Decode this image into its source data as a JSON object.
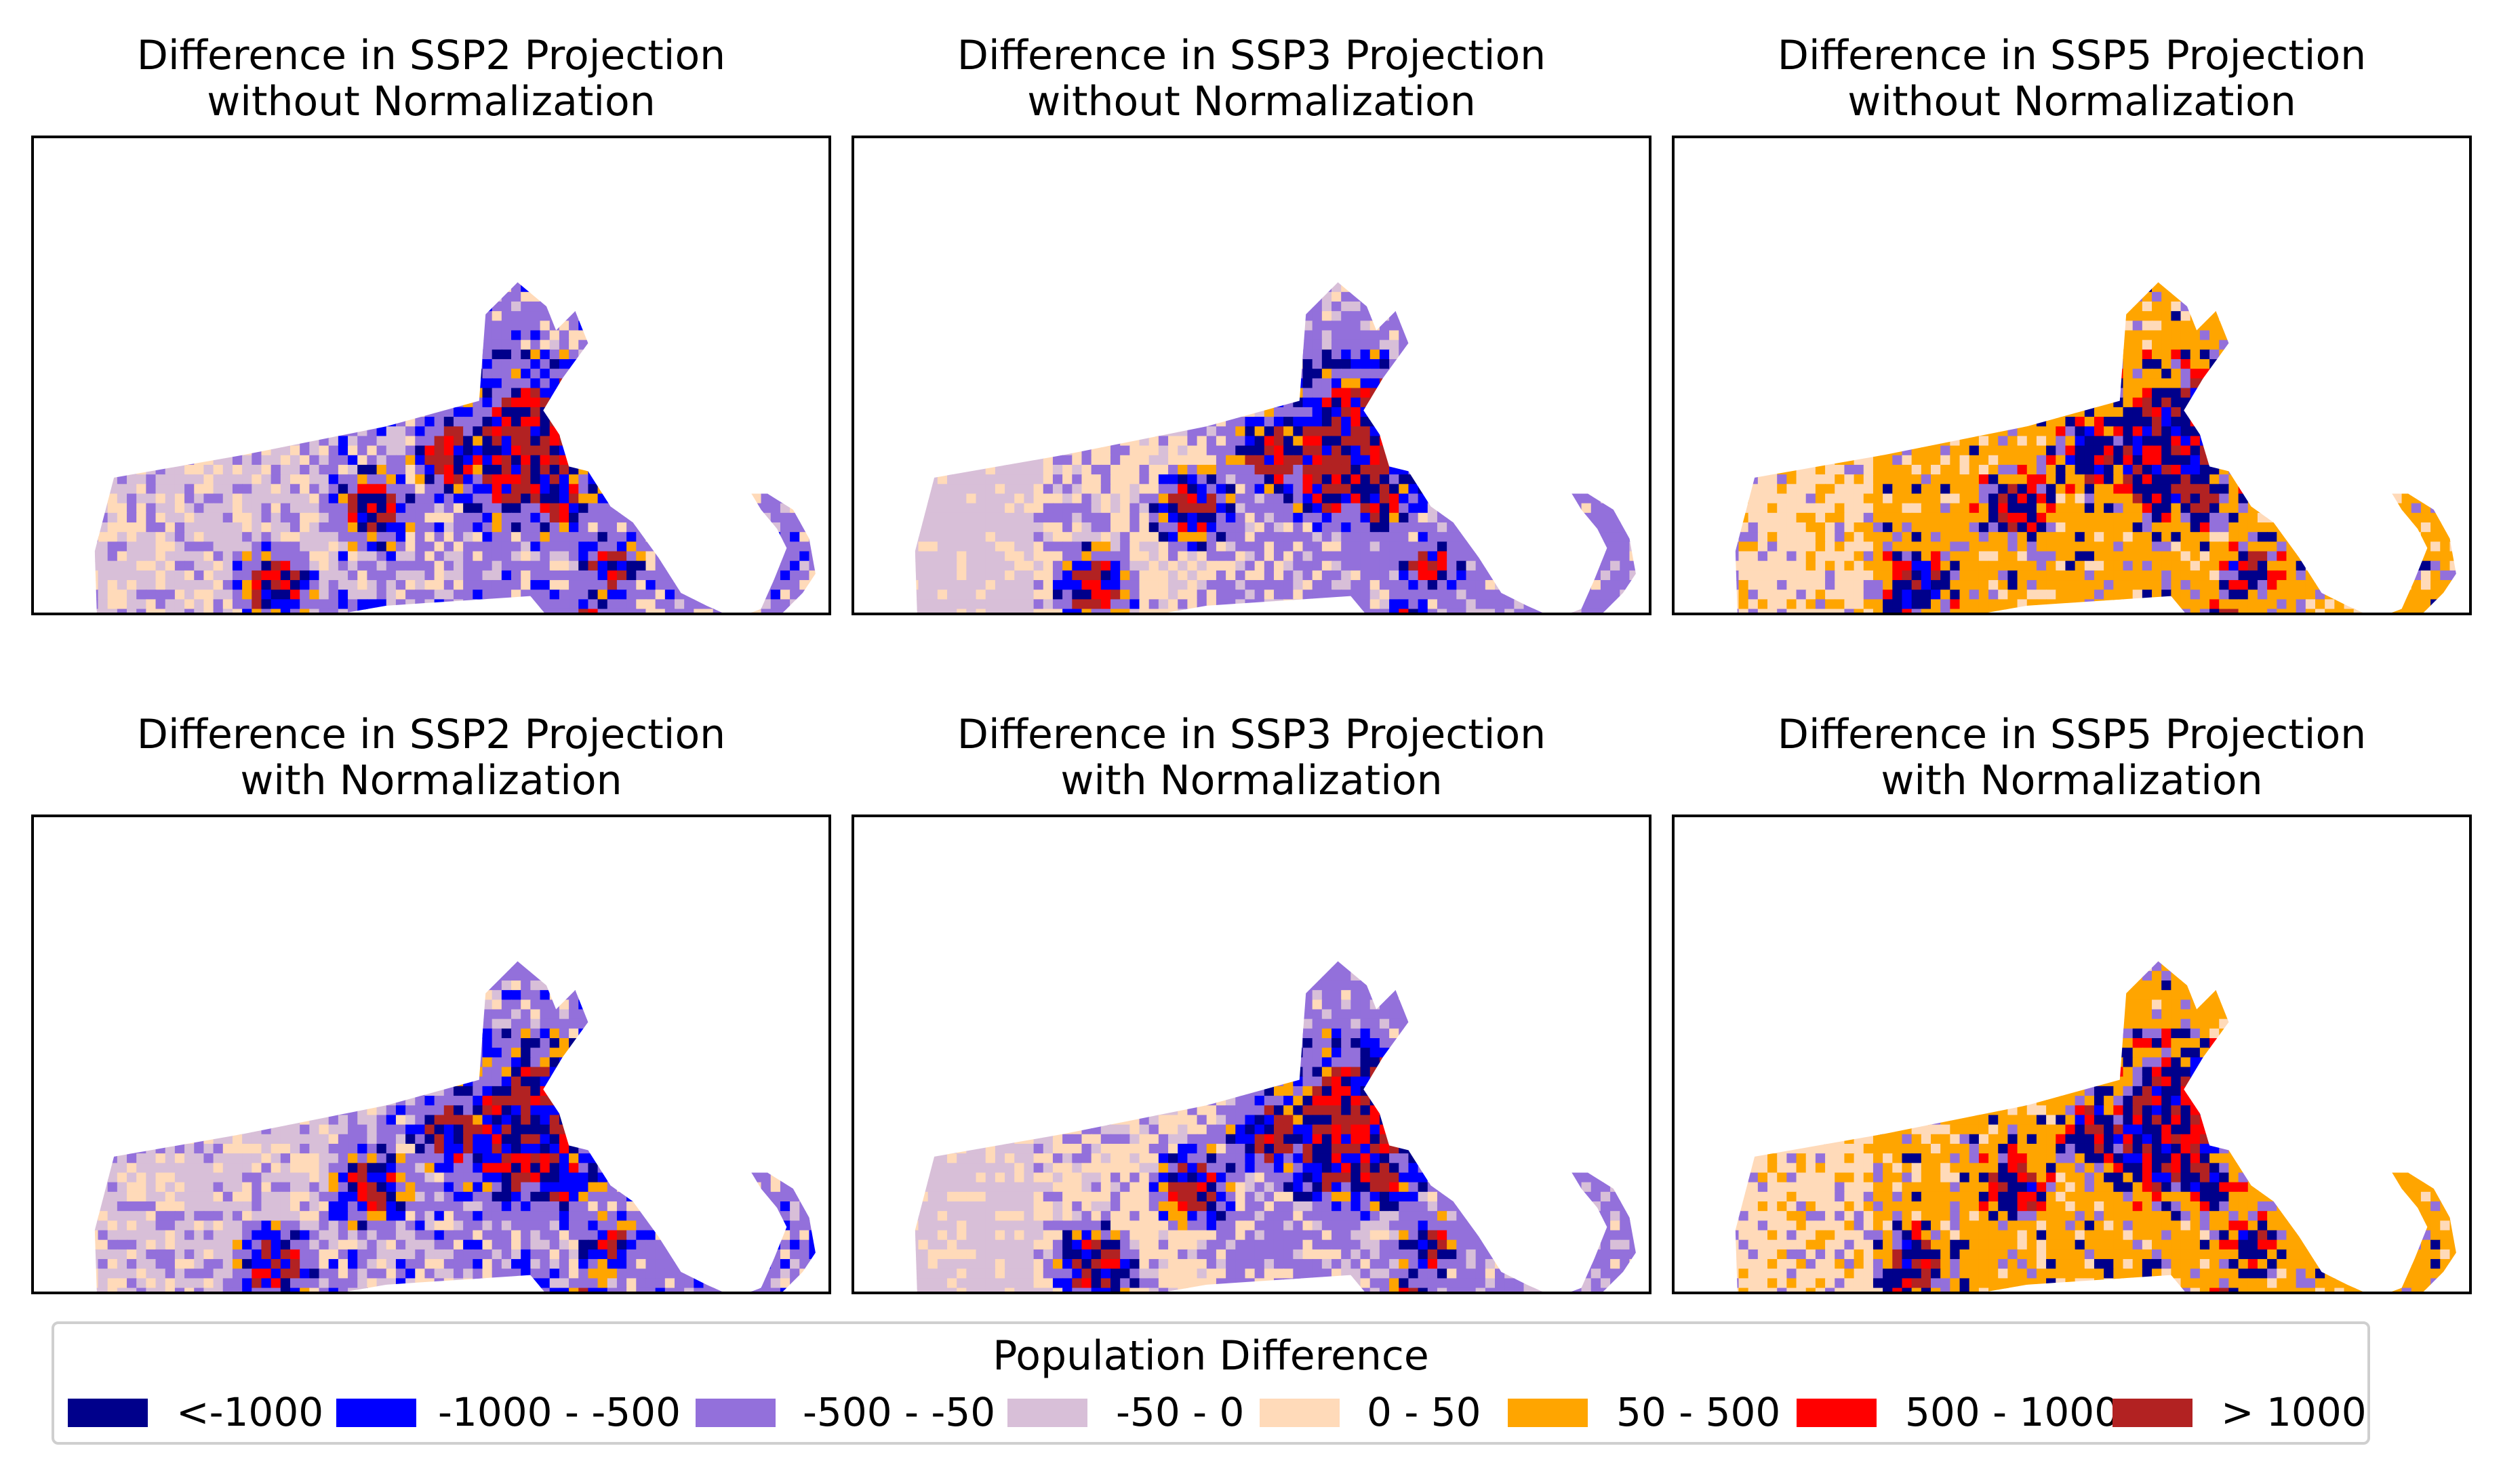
{
  "panels": [
    {
      "title_line1": "Difference in SSP2 Projection",
      "title_line2": "without Normalization",
      "scenario": "SSP2",
      "normalized": false
    },
    {
      "title_line1": "Difference in SSP3 Projection",
      "title_line2": "without Normalization",
      "scenario": "SSP3",
      "normalized": false
    },
    {
      "title_line1": "Difference in SSP5 Projection",
      "title_line2": "without Normalization",
      "scenario": "SSP5",
      "normalized": false
    },
    {
      "title_line1": "Difference in SSP2 Projection",
      "title_line2": "with Normalization",
      "scenario": "SSP2",
      "normalized": true
    },
    {
      "title_line1": "Difference in SSP3 Projection",
      "title_line2": "with Normalization",
      "scenario": "SSP3",
      "normalized": true
    },
    {
      "title_line1": "Difference in SSP5 Projection",
      "title_line2": "with Normalization",
      "scenario": "SSP5",
      "normalized": true
    }
  ],
  "legend": {
    "title": "Population Difference",
    "items": [
      {
        "label": "<-1000",
        "color": "#00008b"
      },
      {
        "label": "-1000 - -500",
        "color": "#0000ff"
      },
      {
        "label": "-500 - -50",
        "color": "#9370db"
      },
      {
        "label": "-50 - 0",
        "color": "#d8bfd8"
      },
      {
        "label": "0 - 50",
        "color": "#ffdab9"
      },
      {
        "label": "50 - 500",
        "color": "#ffa500"
      },
      {
        "label": "500 - 1000",
        "color": "#ff0000"
      },
      {
        "label": "> 1000",
        "color": "#b22222"
      }
    ]
  }
}
